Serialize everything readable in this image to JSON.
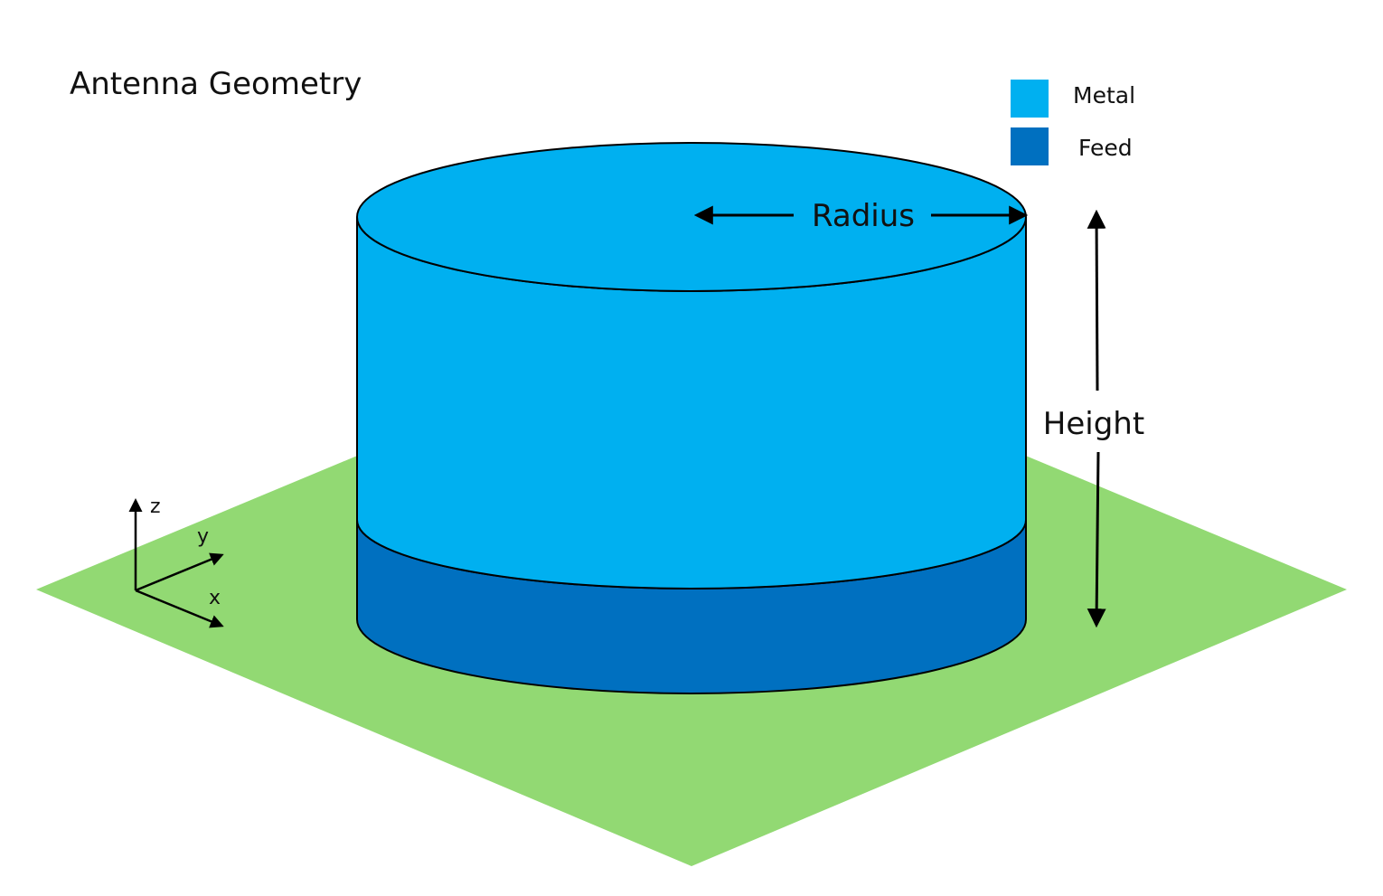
{
  "title": "Antenna Geometry",
  "legend": [
    {
      "label": "Metal",
      "color": "#00b0f0"
    },
    {
      "label": "Feed",
      "color": "#0070c0"
    }
  ],
  "dimensions": {
    "radius_label": "Radius",
    "height_label": "Height"
  },
  "axes": {
    "x_label": "x",
    "y_label": "y",
    "z_label": "z"
  },
  "colors": {
    "ground_plane": "#92d973",
    "metal": "#00b0f0",
    "feed": "#0070c0",
    "outline": "#000000"
  }
}
